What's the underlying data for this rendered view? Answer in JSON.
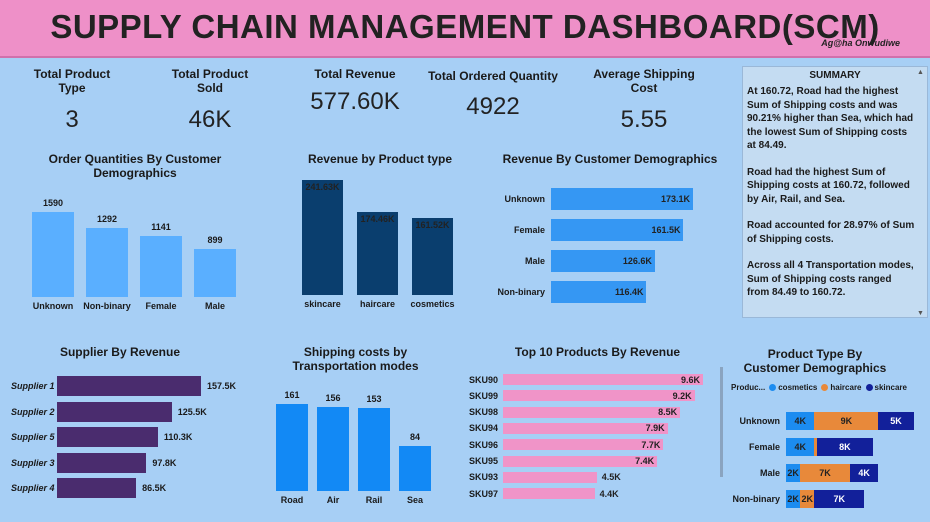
{
  "header": {
    "title": "SUPPLY CHAIN MANAGEMENT DASHBOARD(SCM)",
    "author": "Ag@ha Onwudiwe"
  },
  "kpis": [
    {
      "label": "Total Product Type",
      "value": "3"
    },
    {
      "label": "Total Product Sold",
      "value": "46K"
    },
    {
      "label": "Total Revenue",
      "value": "577.60K"
    },
    {
      "label": "Total Ordered Quantity",
      "value": "4922"
    },
    {
      "label": "Average Shipping Cost",
      "value": "5.55"
    }
  ],
  "summary": {
    "title": "SUMMARY",
    "paragraphs": [
      "At 160.72, Road had the highest Sum of Shipping costs and was 90.21% higher than Sea, which had the lowest Sum of Shipping costs at 84.49.",
      "Road had the highest Sum of Shipping costs at 160.72, followed by Air, Rail, and Sea.",
      "Road accounted for 28.97% of Sum of Shipping costs.",
      "Across all 4 Transportation modes, Sum of Shipping costs ranged from 84.49 to 160.72."
    ]
  },
  "chart_data": [
    {
      "type": "bar",
      "id": "orders",
      "orientation": "vertical",
      "title": "Order Quantities By Customer Demographics",
      "categories": [
        "Unknown",
        "Non-binary",
        "Female",
        "Male"
      ],
      "values": [
        1590,
        1292,
        1141,
        899
      ],
      "labels": [
        "1590",
        "1292",
        "1141",
        "899"
      ],
      "color": "#5aafff"
    },
    {
      "type": "bar",
      "id": "revtype",
      "orientation": "vertical",
      "title": "Revenue by Product type",
      "categories": [
        "skincare",
        "haircare",
        "cosmetics"
      ],
      "values": [
        241.63,
        174.46,
        161.52
      ],
      "labels": [
        "241.63K",
        "174.46K",
        "161.52K"
      ],
      "color": "#0a3e6e"
    },
    {
      "type": "bar",
      "id": "revdemo",
      "orientation": "horizontal",
      "title": "Revenue By Customer Demographics",
      "categories": [
        "Unknown",
        "Female",
        "Male",
        "Non-binary"
      ],
      "values": [
        173.1,
        161.5,
        126.6,
        116.4
      ],
      "labels": [
        "173.1K",
        "161.5K",
        "126.6K",
        "116.4K"
      ],
      "color": "#3597f3"
    },
    {
      "type": "bar",
      "id": "supplier",
      "orientation": "horizontal",
      "title": "Supplier By Revenue",
      "categories": [
        "Supplier 1",
        "Supplier 2",
        "Supplier 5",
        "Supplier 3",
        "Supplier 4"
      ],
      "values": [
        157.5,
        125.5,
        110.3,
        97.8,
        86.5
      ],
      "labels": [
        "157.5K",
        "125.5K",
        "110.3K",
        "97.8K",
        "86.5K"
      ],
      "color": "#4a2c6e"
    },
    {
      "type": "bar",
      "id": "shipping",
      "orientation": "vertical",
      "title": "Shipping costs by Transportation modes",
      "categories": [
        "Road",
        "Air",
        "Rail",
        "Sea"
      ],
      "values": [
        161,
        156,
        153,
        84
      ],
      "labels": [
        "161",
        "156",
        "153",
        "84"
      ],
      "color": "#1289f5"
    },
    {
      "type": "bar",
      "id": "top10",
      "orientation": "horizontal",
      "title": "Top 10 Products By Revenue",
      "categories": [
        "SKU90",
        "SKU99",
        "SKU98",
        "SKU94",
        "SKU96",
        "SKU95",
        "SKU93",
        "SKU97"
      ],
      "values": [
        9.6,
        9.2,
        8.5,
        7.9,
        7.7,
        7.4,
        4.5,
        4.4
      ],
      "labels": [
        "9.6K",
        "9.2K",
        "8.5K",
        "7.9K",
        "7.7K",
        "7.4K",
        "4.5K",
        "4.4K"
      ],
      "color": "#f094c8"
    },
    {
      "type": "bar",
      "id": "ptype",
      "orientation": "horizontal",
      "stacked": true,
      "title": "Product Type By Customer Demographics",
      "legend_title": "Produc...",
      "categories": [
        "Unknown",
        "Female",
        "Male",
        "Non-binary"
      ],
      "series": [
        {
          "name": "cosmetics",
          "color": "#1c8cf0",
          "values": [
            4,
            4,
            2,
            2
          ],
          "labels": [
            "4K",
            "4K",
            "2K",
            "2K"
          ]
        },
        {
          "name": "haircare",
          "color": "#e8893a",
          "values": [
            9,
            0.3,
            7,
            2
          ],
          "labels": [
            "9K",
            "",
            "7K",
            "2K"
          ]
        },
        {
          "name": "skincare",
          "color": "#12209a",
          "values": [
            5,
            8,
            4,
            7
          ],
          "labels": [
            "5K",
            "8K",
            "4K",
            "7K"
          ]
        }
      ]
    }
  ]
}
